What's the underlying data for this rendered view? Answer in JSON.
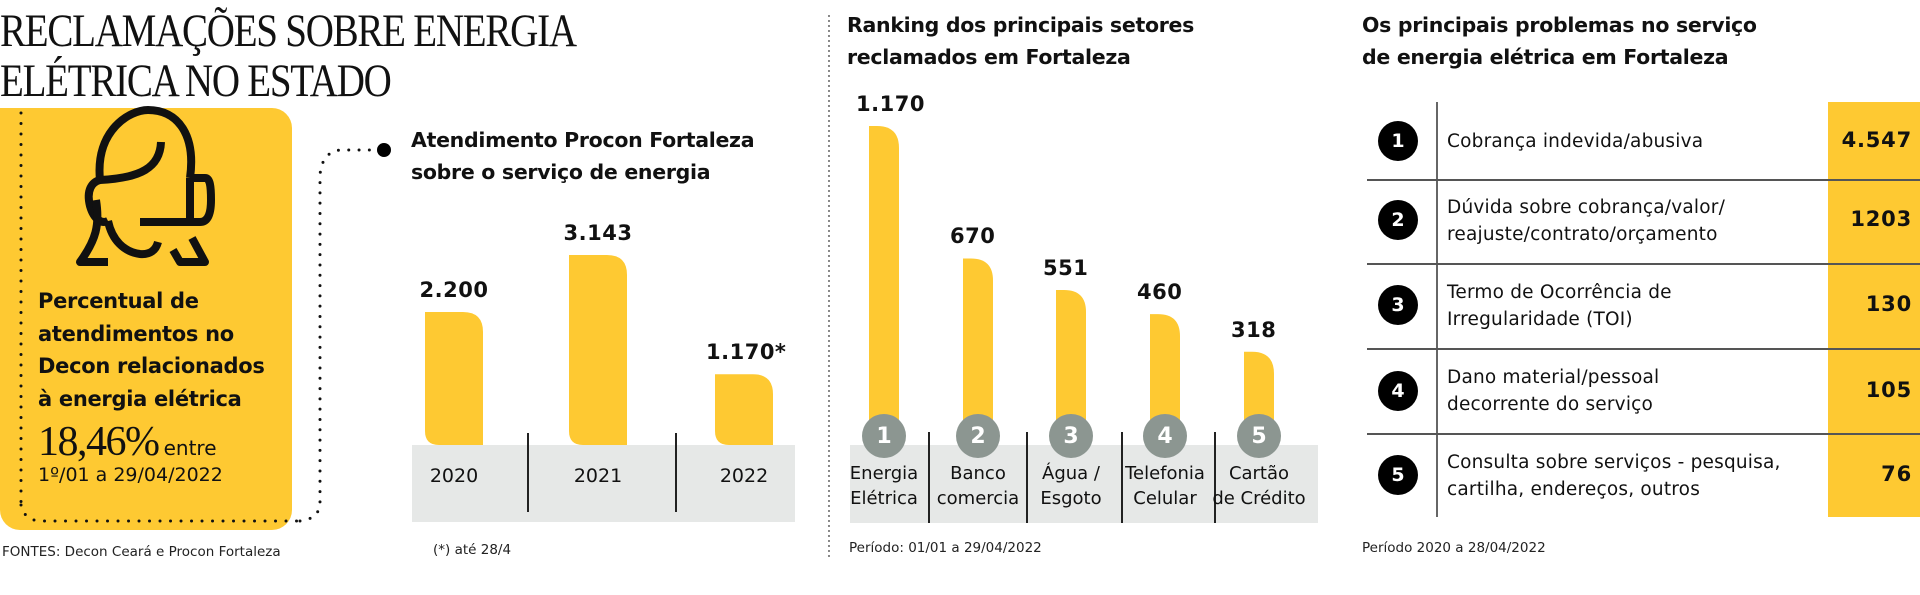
{
  "title": {
    "line1": "RECLAMAÇÕES SOBRE ENERGIA",
    "line2": "ELÉTRICA NO ESTADO"
  },
  "card": {
    "icon": "headset-person-icon",
    "heading_lines": [
      "Percentual de",
      "atendimentos no",
      "Decon relacionados",
      "à energia elétrica"
    ],
    "percent": "18,46%",
    "percent_suffix": "entre",
    "range": "1º/01 a 29/04/2022"
  },
  "sources": "FONTES: Decon Ceará e Procon Fortaleza",
  "colors": {
    "accent_yellow": "#fec932",
    "band_gray": "#e6e8e7",
    "rank_circle_gray": "#8c9691",
    "text_black": "#111111"
  },
  "chart_data": [
    {
      "type": "bar",
      "title": "Atendimento Procon Fortaleza sobre o serviço de energia",
      "title_lines": [
        "Atendimento Procon Fortaleza",
        "sobre o serviço de energia"
      ],
      "categories": [
        "2020",
        "2021",
        "2022"
      ],
      "values": [
        2200,
        3143,
        1170
      ],
      "value_labels": [
        "2.200",
        "3.143",
        "1.170*"
      ],
      "xlabel": "",
      "ylabel": "",
      "ylim": [
        0,
        3143
      ],
      "grid": false,
      "footnote": "(*) até 28/4"
    },
    {
      "type": "bar",
      "title": "Ranking dos principais setores reclamados em Fortaleza",
      "title_lines": [
        "Ranking dos principais setores",
        "reclamados em Fortaleza"
      ],
      "ranks": [
        "1",
        "2",
        "3",
        "4",
        "5"
      ],
      "categories": [
        "Energia Elétrica",
        "Banco comercia",
        "Água / Esgoto",
        "Telefonia Celular",
        "Cartão de Crédito"
      ],
      "category_lines": [
        [
          "Energia",
          "Elétrica"
        ],
        [
          "Banco",
          "comercia"
        ],
        [
          "Água /",
          "Esgoto"
        ],
        [
          "Telefonia",
          "Celular"
        ],
        [
          "Cartão",
          "de Crédito"
        ]
      ],
      "values": [
        1170,
        670,
        551,
        460,
        318
      ],
      "value_labels": [
        "1.170",
        "670",
        "551",
        "460",
        "318"
      ],
      "xlabel": "",
      "ylabel": "",
      "ylim": [
        0,
        1170
      ],
      "grid": false,
      "footnote": "Período:  01/01 a 29/04/2022"
    },
    {
      "type": "table",
      "title": "Os principais problemas no serviço de energia elétrica em Fortaleza",
      "title_lines": [
        "Os principais problemas no serviço",
        "de energia elétrica em Fortaleza"
      ],
      "rows": [
        {
          "rank": "1",
          "lines": [
            "Cobrança indevida/abusiva"
          ],
          "value": "4.547"
        },
        {
          "rank": "2",
          "lines": [
            "Dúvida sobre cobrança/valor/",
            "reajuste/contrato/orçamento"
          ],
          "value": "1203"
        },
        {
          "rank": "3",
          "lines": [
            "Termo de Ocorrência de",
            "Irregularidade (TOI)"
          ],
          "value": "130"
        },
        {
          "rank": "4",
          "lines": [
            "Dano material/pessoal",
            "decorrente do serviço"
          ],
          "value": "105"
        },
        {
          "rank": "5",
          "lines": [
            "Consulta sobre serviços - pesquisa,",
            "cartilha, endereços, outros"
          ],
          "value": "76"
        }
      ],
      "footnote": "Período 2020 a 28/04/2022"
    }
  ]
}
